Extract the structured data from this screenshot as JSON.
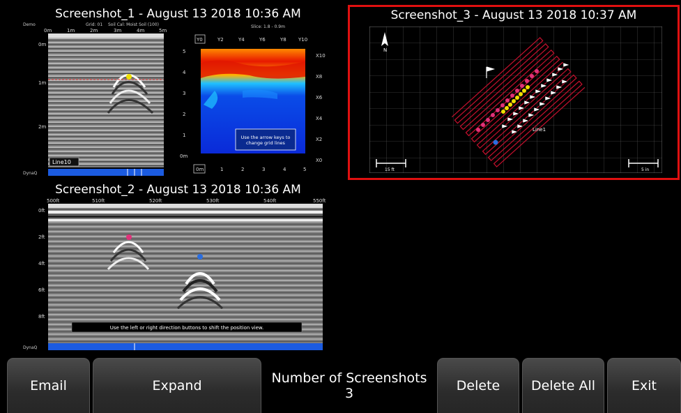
{
  "screenshots": [
    {
      "title": "Screenshot_1 - August 13 2018 10:36 AM",
      "left_panel": {
        "project": "Demo",
        "grid": "Grid: 01",
        "soil": "Soil Cal: Moist Soil (100)",
        "slice": "Slice: 1.8 - 0.9m",
        "x_ticks": [
          "0m",
          "1m",
          "2m",
          "3m",
          "4m",
          "5m"
        ],
        "y_ticks": [
          "0m",
          "1m",
          "2m"
        ],
        "line_label": "Line10",
        "footer": "DynaQ"
      },
      "right_panel": {
        "top_ticks": [
          "Y0",
          "Y2",
          "Y4",
          "Y6",
          "Y8",
          "Y10"
        ],
        "left_ticks": [
          "5",
          "4",
          "3",
          "2",
          "1",
          "0m"
        ],
        "right_ticks": [
          "X10",
          "X8",
          "X6",
          "X4",
          "X2",
          "X0"
        ],
        "bottom_ticks": [
          "0m",
          "1",
          "2",
          "3",
          "4",
          "5"
        ],
        "hint": "Use the arrow keys to change grid lines"
      }
    },
    {
      "title": "Screenshot_2 - August 13 2018 10:36 AM",
      "x_ticks": [
        "500ft",
        "510ft",
        "520ft",
        "530ft",
        "540ft",
        "550ft"
      ],
      "y_ticks": [
        "0ft",
        "2ft",
        "4ft",
        "6ft",
        "8ft"
      ],
      "hint": "Use the left or right direction buttons to shift the position view.",
      "footer": "DynaQ"
    },
    {
      "title": "Screenshot_3 - August 13 2018 10:37 AM",
      "north": "N",
      "line_label": "Line1",
      "scale_left": "15 ft",
      "scale_right": "5 in"
    }
  ],
  "toolbar": {
    "email": "Email",
    "expand": "Expand",
    "count_label": "Number of Screenshots",
    "count_value": "3",
    "delete": "Delete",
    "delete_all": "Delete All",
    "exit": "Exit"
  },
  "colors": {
    "selection": "#e01010",
    "pink_marker": "#e0327a",
    "yellow_marker": "#f0e000",
    "blue_marker": "#2a6ee0",
    "dynaq_bar": "#1b5be0"
  }
}
